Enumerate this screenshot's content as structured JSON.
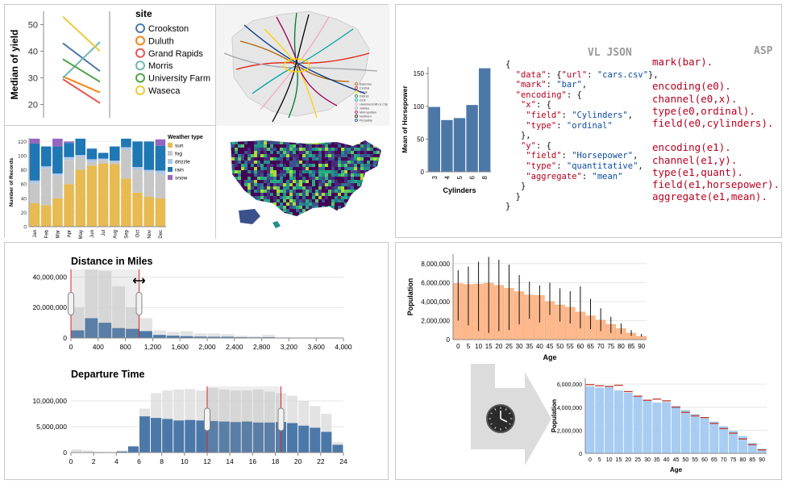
{
  "yield": {
    "ylabel": "Median of yield",
    "yticks": [
      20,
      30,
      40,
      50
    ],
    "legend_title": "site",
    "sites": [
      {
        "name": "Crookston",
        "color": "#4c78a8",
        "y1931": 43,
        "y1932": 32.5
      },
      {
        "name": "Duluth",
        "color": "#f58518",
        "y1931": 30.5,
        "y1932": 24.5
      },
      {
        "name": "Grand Rapids",
        "color": "#e45756",
        "y1931": 29.5,
        "y1932": 20.5
      },
      {
        "name": "Morris",
        "color": "#72b7b2",
        "y1931": 30,
        "y1932": 43.5
      },
      {
        "name": "University Farm",
        "color": "#54a24b",
        "y1931": 37,
        "y1932": 28.5
      },
      {
        "name": "Waseca",
        "color": "#eeca3b",
        "y1931": 53,
        "y1932": 40
      }
    ]
  },
  "weather": {
    "ylabel": "Number of Records",
    "legend_title": "Weather type",
    "months": [
      "Jan",
      "Feb",
      "Mar",
      "Apr",
      "May",
      "Jun",
      "Jul",
      "Aug",
      "Sep",
      "Oct",
      "Nov",
      "Dec"
    ],
    "yticks": [
      0,
      20,
      40,
      60,
      80,
      100,
      120
    ],
    "types": [
      {
        "name": "sun",
        "color": "#e7ba52"
      },
      {
        "name": "fog",
        "color": "#c7c7c7"
      },
      {
        "name": "drizzle",
        "color": "#aec7e8"
      },
      {
        "name": "rain",
        "color": "#1f77b4"
      },
      {
        "name": "snow",
        "color": "#9467bd"
      }
    ],
    "stacks": [
      [
        33,
        28,
        4,
        52,
        7
      ],
      [
        30,
        52,
        3,
        28,
        0
      ],
      [
        40,
        32,
        3,
        38,
        11
      ],
      [
        60,
        34,
        4,
        20,
        2
      ],
      [
        80,
        18,
        3,
        23,
        0
      ],
      [
        86,
        5,
        4,
        15,
        0
      ],
      [
        89,
        5,
        2,
        8,
        0
      ],
      [
        88,
        3,
        2,
        20,
        0
      ],
      [
        68,
        40,
        4,
        12,
        0
      ],
      [
        48,
        32,
        4,
        36,
        0
      ],
      [
        42,
        35,
        3,
        40,
        0
      ],
      [
        40,
        34,
        5,
        35,
        9
      ]
    ]
  },
  "cars": {
    "xlabel": "Cylinders",
    "ylabel": "Mean of Horsepower",
    "categories": [
      "3",
      "4",
      "5",
      "6",
      "8"
    ],
    "values": [
      99,
      79,
      82,
      102,
      158
    ],
    "yticks": [
      0,
      50,
      100,
      150
    ],
    "ylim": [
      0,
      160
    ]
  },
  "vl": {
    "header": "VL JSON",
    "lines": [
      [
        {
          "t": "{",
          "c": "p"
        }
      ],
      [
        {
          "t": "  ",
          "c": "p"
        },
        {
          "t": "\"data\"",
          "c": "k"
        },
        {
          "t": ": {",
          "c": "p"
        },
        {
          "t": "\"url\"",
          "c": "k"
        },
        {
          "t": ": ",
          "c": "p"
        },
        {
          "t": "\"cars.csv\"",
          "c": "s"
        },
        {
          "t": "},",
          "c": "p"
        }
      ],
      [
        {
          "t": "  ",
          "c": "p"
        },
        {
          "t": "\"mark\"",
          "c": "k"
        },
        {
          "t": ": ",
          "c": "p"
        },
        {
          "t": "\"bar\"",
          "c": "s"
        },
        {
          "t": ",",
          "c": "p"
        }
      ],
      [
        {
          "t": "  ",
          "c": "p"
        },
        {
          "t": "\"encoding\"",
          "c": "k"
        },
        {
          "t": ": {",
          "c": "p"
        }
      ],
      [
        {
          "t": "   ",
          "c": "p"
        },
        {
          "t": "\"x\"",
          "c": "k"
        },
        {
          "t": ": {",
          "c": "p"
        }
      ],
      [
        {
          "t": "    ",
          "c": "p"
        },
        {
          "t": "\"field\"",
          "c": "k"
        },
        {
          "t": ": ",
          "c": "p"
        },
        {
          "t": "\"Cylinders\"",
          "c": "s"
        },
        {
          "t": ",",
          "c": "p"
        }
      ],
      [
        {
          "t": "    ",
          "c": "p"
        },
        {
          "t": "\"type\"",
          "c": "k"
        },
        {
          "t": ": ",
          "c": "p"
        },
        {
          "t": "\"ordinal\"",
          "c": "s"
        }
      ],
      [
        {
          "t": "   },",
          "c": "p"
        }
      ],
      [
        {
          "t": "   ",
          "c": "p"
        },
        {
          "t": "\"y\"",
          "c": "k"
        },
        {
          "t": ": {",
          "c": "p"
        }
      ],
      [
        {
          "t": "    ",
          "c": "p"
        },
        {
          "t": "\"field\"",
          "c": "k"
        },
        {
          "t": ": ",
          "c": "p"
        },
        {
          "t": "\"Horsepower\"",
          "c": "s"
        },
        {
          "t": ",",
          "c": "p"
        }
      ],
      [
        {
          "t": "    ",
          "c": "p"
        },
        {
          "t": "\"type\"",
          "c": "k"
        },
        {
          "t": ": ",
          "c": "p"
        },
        {
          "t": "\"quantitative\"",
          "c": "s"
        },
        {
          "t": ",",
          "c": "p"
        }
      ],
      [
        {
          "t": "    ",
          "c": "p"
        },
        {
          "t": "\"aggregate\"",
          "c": "k"
        },
        {
          "t": ": ",
          "c": "p"
        },
        {
          "t": "\"mean\"",
          "c": "s"
        }
      ],
      [
        {
          "t": "   }",
          "c": "p"
        }
      ],
      [
        {
          "t": "  }",
          "c": "p"
        }
      ],
      [
        {
          "t": "}",
          "c": "p"
        }
      ]
    ]
  },
  "asp": {
    "header": "ASP",
    "lines": [
      "mark(bar).",
      "",
      "encoding(e0).",
      "channel(e0,x).",
      "type(e0,ordinal).",
      "field(e0,cylinders).",
      "",
      "encoding(e1).",
      "channel(e1,y).",
      "type(e1,quant).",
      "field(e1,horsepower).",
      "aggregate(e1,mean)."
    ]
  },
  "distance": {
    "title": "Distance in Miles",
    "xticks": [
      "0",
      "400",
      "800",
      "1,200",
      "1,600",
      "2,000",
      "2,400",
      "2,800",
      "3,200",
      "3,600",
      "4,000"
    ],
    "yticks": [
      {
        "v": 0,
        "l": "0"
      },
      {
        "v": 20000000,
        "l": "20,000,000"
      },
      {
        "v": 40000000,
        "l": "40,000,000"
      }
    ],
    "bin_width": 200,
    "all": [
      20000000,
      45000000,
      44000000,
      34000000,
      20000000,
      13000000,
      5000000,
      4000000,
      4500000,
      3000000,
      3000000,
      2500000,
      1500000,
      1200000,
      2000000,
      400000,
      300000,
      200000,
      150000,
      100000
    ],
    "selected": [
      5000000,
      13000000,
      10000000,
      6500000,
      6000000,
      4500000,
      2000000,
      1500000,
      1200000,
      900000,
      800000,
      800000,
      500000,
      400000,
      500000,
      150000,
      100000,
      80000,
      60000,
      40000
    ],
    "brush": [
      0,
      1000
    ]
  },
  "departure": {
    "title": "Departure Time",
    "xticks": [
      "0",
      "2",
      "4",
      "6",
      "8",
      "10",
      "12",
      "14",
      "16",
      "18",
      "20",
      "22",
      "24"
    ],
    "yticks": [
      {
        "v": 0,
        "l": "0"
      },
      {
        "v": 5000000,
        "l": "5,000,000"
      },
      {
        "v": 10000000,
        "l": "10,000,000"
      }
    ],
    "all": [
      600000,
      400000,
      150000,
      100000,
      400000,
      900000,
      8500000,
      11500000,
      12000000,
      12200000,
      12300000,
      12000000,
      12500000,
      12200000,
      12000000,
      12000000,
      12200000,
      11800000,
      11500000,
      11000000,
      10000000,
      9000000,
      7500000,
      2000000
    ],
    "selected": [
      0,
      0,
      0,
      0,
      200000,
      1200000,
      7000000,
      6700000,
      6500000,
      6200000,
      6300000,
      6200000,
      6100000,
      6000000,
      5900000,
      6000000,
      5800000,
      5800000,
      5900000,
      5700000,
      5200000,
      4800000,
      4000000,
      1500000
    ],
    "brush": [
      12,
      18.5
    ]
  },
  "population": {
    "xlabel": "Age",
    "ylabel": "Population",
    "ages": [
      0,
      5,
      10,
      15,
      20,
      25,
      30,
      35,
      40,
      45,
      50,
      55,
      60,
      65,
      70,
      75,
      80,
      85,
      90
    ],
    "values": [
      5900000,
      5800000,
      5850000,
      5950000,
      5700000,
      5400000,
      5050000,
      4700000,
      4650000,
      4000000,
      3650000,
      3400000,
      2900000,
      2500000,
      2050000,
      1600000,
      1150000,
      680000,
      350000
    ],
    "mins": [
      2000000,
      1500000,
      900000,
      700000,
      900000,
      1000000,
      1600000,
      2200000,
      1800000,
      2600000,
      1900000,
      1700000,
      1200000,
      1100000,
      900000,
      700000,
      600000,
      400000,
      300000
    ],
    "maxs": [
      7300000,
      7700000,
      8200000,
      8700000,
      8400000,
      7900000,
      6800000,
      6100000,
      5700000,
      6000000,
      5400000,
      5100000,
      5600000,
      4300000,
      3300000,
      2400000,
      1700000,
      1000000,
      600000
    ],
    "yticks": [
      {
        "v": 0,
        "l": "0"
      },
      {
        "v": 2000000,
        "l": "2,000,000"
      },
      {
        "v": 4000000,
        "l": "4,000,000"
      },
      {
        "v": 6000000,
        "l": "6,000,000"
      },
      {
        "v": 8000000,
        "l": "8,000,000"
      }
    ],
    "xticks": [
      "0",
      "5",
      "10",
      "15",
      "20",
      "25",
      "30",
      "35",
      "40",
      "45",
      "50",
      "55",
      "60",
      "65",
      "70",
      "75",
      "80",
      "85",
      "90"
    ]
  },
  "population2": {
    "xlabel": "Age",
    "ylabel": "Population",
    "values": [
      5800000,
      5700000,
      5750000,
      5450000,
      5250000,
      5000000,
      4650000,
      4400000,
      4450000,
      4100000,
      3750000,
      3400000,
      3050000,
      2750000,
      2350000,
      1950000,
      1500000,
      900000,
      400000
    ],
    "marks": [
      5950000,
      5850000,
      5800000,
      5900000,
      5350000,
      4950000,
      4600000,
      4700000,
      4550000,
      4000000,
      3550000,
      3250000,
      3100000,
      2600000,
      2150000,
      1750000,
      1250000,
      750000,
      300000
    ],
    "yticks": [
      {
        "v": 0,
        "l": "0"
      },
      {
        "v": 2000000,
        "l": "2,000,000"
      },
      {
        "v": 4000000,
        "l": "4,000,000"
      },
      {
        "v": 6000000,
        "l": "6,000,000"
      }
    ],
    "xticks": [
      "0",
      "5",
      "10",
      "15",
      "20",
      "25",
      "30",
      "35",
      "40",
      "45",
      "50",
      "55",
      "60",
      "65",
      "70",
      "75",
      "80",
      "85",
      "90"
    ]
  },
  "map_legend": [
    "Bakerloo",
    "Central",
    "Circle",
    "District",
    "DLR",
    "Hammersmith & City",
    "Jubilee",
    "Metropolitan",
    "Northern",
    "Piccadilly"
  ],
  "map_colors": [
    "#b36305",
    "#e32017",
    "#ffd300",
    "#00782a",
    "#00a4a7",
    "#f3a9bb",
    "#a0a5a9",
    "#9b0056",
    "#000000",
    "#003688"
  ],
  "colors": {
    "vl_key": "#b5001d",
    "vl_str": "#0b4a9e",
    "bar": "#4c78a8",
    "orange": "#fdb98d",
    "orange_stroke": "#f6944e",
    "lightblue": "#a9cdf2",
    "brush": "#d62728"
  }
}
